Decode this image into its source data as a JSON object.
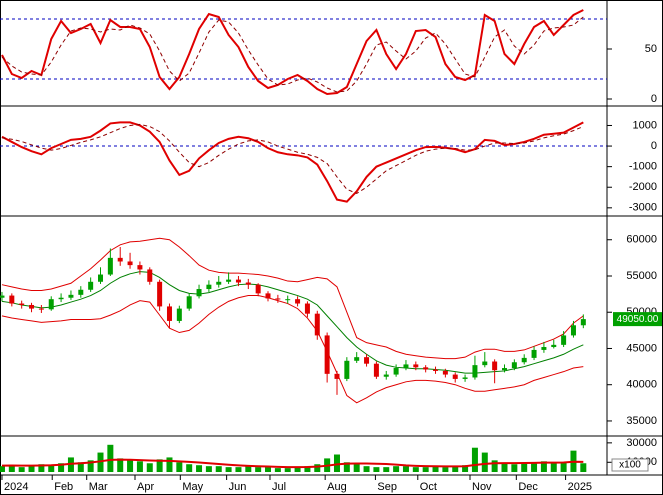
{
  "chart_data": [
    {
      "type": "line",
      "ylim": [
        -4,
        99
      ],
      "yticks": [
        0,
        50
      ],
      "ref_lines": [
        20,
        80
      ],
      "ref_color": "#0000c0",
      "series": [
        {
          "color": "#e00000",
          "dash": false,
          "values": [
            44,
            25,
            21,
            28,
            24,
            60,
            78,
            66,
            70,
            75,
            56,
            79,
            72,
            72,
            70,
            52,
            22,
            10,
            22,
            45,
            70,
            85,
            82,
            64,
            52,
            32,
            18,
            11,
            14,
            20,
            24,
            18,
            10,
            5,
            6,
            12,
            35,
            58,
            69,
            45,
            30,
            45,
            68,
            69,
            62,
            35,
            22,
            19,
            24,
            84,
            78,
            45,
            35,
            55,
            72,
            78,
            64,
            74,
            84,
            89
          ]
        },
        {
          "color": "#900000",
          "dash": true,
          "values": [
            42,
            33,
            27,
            25,
            24,
            37,
            54,
            68,
            71,
            70,
            67,
            70,
            69,
            74,
            71,
            65,
            48,
            28,
            18,
            26,
            46,
            67,
            79,
            77,
            66,
            49,
            34,
            20,
            14,
            15,
            19,
            21,
            17,
            11,
            7,
            8,
            18,
            35,
            54,
            57,
            48,
            40,
            48,
            61,
            66,
            55,
            40,
            25,
            22,
            42,
            62,
            69,
            53,
            45,
            54,
            68,
            71,
            72,
            74,
            82
          ]
        }
      ]
    },
    {
      "type": "line",
      "ylim": [
        -3300,
        1800
      ],
      "yticks": [
        1000,
        0,
        -1000,
        -2000,
        -3000
      ],
      "ref_lines": [
        0
      ],
      "ref_color": "#0000c0",
      "series": [
        {
          "color": "#e00000",
          "dash": false,
          "values": [
            450,
            200,
            -50,
            -250,
            -400,
            -100,
            100,
            300,
            350,
            450,
            750,
            1100,
            1150,
            1150,
            1000,
            700,
            200,
            -700,
            -1400,
            -1200,
            -600,
            -200,
            150,
            350,
            450,
            380,
            200,
            -100,
            -300,
            -400,
            -450,
            -550,
            -900,
            -1700,
            -2600,
            -2700,
            -2200,
            -1500,
            -1000,
            -800,
            -600,
            -400,
            -200,
            -50,
            -40,
            -80,
            -150,
            -300,
            -150,
            300,
            250,
            50,
            100,
            200,
            350,
            550,
            600,
            650,
            900,
            1150
          ]
        },
        {
          "color": "#900000",
          "dash": true,
          "values": [
            400,
            330,
            220,
            60,
            -100,
            -200,
            -120,
            30,
            180,
            300,
            450,
            650,
            850,
            1000,
            1050,
            950,
            700,
            250,
            -300,
            -800,
            -1000,
            -800,
            -450,
            -150,
            100,
            250,
            300,
            200,
            0,
            -150,
            -300,
            -400,
            -550,
            -850,
            -1500,
            -2100,
            -2300,
            -2000,
            -1600,
            -1200,
            -950,
            -700,
            -450,
            -250,
            -150,
            -100,
            -120,
            -200,
            -180,
            0,
            150,
            150,
            120,
            150,
            250,
            400,
            500,
            580,
            750,
            950
          ]
        }
      ]
    },
    {
      "type": "candlestick",
      "ylim": [
        33200,
        63000
      ],
      "yticks": [
        35000,
        40000,
        45000,
        50000,
        55000,
        60000
      ],
      "up_color": "#00a000",
      "down_color": "#e00000",
      "last_label": "49050.00",
      "last_label_color": "#00a000",
      "open": [
        52000,
        52300,
        51200,
        51000,
        50500,
        50400,
        51800,
        52000,
        52400,
        53100,
        54200,
        55200,
        57500,
        57000,
        56500,
        55900,
        54200,
        50800,
        48800,
        50500,
        52200,
        53200,
        53800,
        54200,
        54500,
        54100,
        53800,
        52600,
        51900,
        51800,
        51800,
        51200,
        49800,
        46800,
        41500,
        40800,
        43300,
        43800,
        42900,
        41100,
        41400,
        42300,
        42800,
        42400,
        42100,
        41900,
        41400,
        40800,
        41000,
        42700,
        43200,
        42000,
        42300,
        43100,
        43700,
        44800,
        45200,
        45500,
        46800,
        48200
      ],
      "high": [
        52800,
        52600,
        51600,
        51300,
        51000,
        52200,
        52600,
        53000,
        53600,
        54800,
        56200,
        58800,
        59000,
        58200,
        57000,
        56200,
        54500,
        51200,
        50900,
        52600,
        53800,
        54400,
        55000,
        55500,
        55000,
        54600,
        54000,
        52900,
        52400,
        52300,
        52200,
        51500,
        50200,
        47200,
        41900,
        43800,
        44500,
        44200,
        43200,
        41900,
        42800,
        43400,
        43200,
        42700,
        42500,
        42200,
        41700,
        41400,
        44000,
        44500,
        43500,
        42800,
        43500,
        44200,
        45300,
        45900,
        46200,
        47400,
        48800,
        49700
      ],
      "low": [
        51500,
        50800,
        50500,
        50000,
        49900,
        50200,
        51400,
        51700,
        52000,
        52800,
        53900,
        55000,
        56400,
        56000,
        55200,
        53800,
        50200,
        47800,
        48500,
        50200,
        51900,
        52800,
        53400,
        53900,
        53600,
        53200,
        52200,
        51500,
        51300,
        51200,
        50800,
        49300,
        46200,
        40300,
        38600,
        40500,
        43000,
        42500,
        40800,
        40700,
        41100,
        42000,
        42000,
        41700,
        41500,
        41000,
        40300,
        40400,
        40700,
        42400,
        40200,
        41700,
        42000,
        42800,
        43400,
        44400,
        45000,
        45200,
        46500,
        47800
      ],
      "close": [
        52300,
        51200,
        51000,
        50500,
        50400,
        51800,
        52000,
        52400,
        53100,
        54200,
        55200,
        57500,
        57000,
        56500,
        55900,
        54200,
        50800,
        48800,
        50500,
        52200,
        53200,
        53800,
        54200,
        54500,
        54100,
        53800,
        52600,
        51900,
        51800,
        51800,
        51200,
        49800,
        46800,
        41500,
        40800,
        43300,
        43800,
        42900,
        41100,
        41400,
        42300,
        42800,
        42400,
        42100,
        41900,
        41400,
        40800,
        41000,
        42700,
        43200,
        42000,
        42300,
        43100,
        43700,
        44800,
        45200,
        45500,
        46800,
        48200,
        49050
      ],
      "lines": [
        {
          "color": "#e00000",
          "values": [
            53800,
            53500,
            53200,
            53000,
            53000,
            53200,
            53600,
            54000,
            55000,
            56000,
            57200,
            58500,
            59300,
            59700,
            59800,
            60000,
            60200,
            60000,
            59000,
            57800,
            56500,
            55800,
            55500,
            55400,
            55400,
            55300,
            55200,
            55000,
            54700,
            54300,
            54200,
            54500,
            54800,
            54600,
            53500,
            50000,
            46500,
            45800,
            45500,
            45200,
            44600,
            44200,
            44000,
            43800,
            43700,
            43600,
            43600,
            43800,
            44500,
            44900,
            44900,
            44600,
            44600,
            44800,
            45300,
            45800,
            46300,
            47000,
            48500,
            49500
          ]
        },
        {
          "color": "#008000",
          "values": [
            51500,
            51300,
            51000,
            50800,
            50600,
            50700,
            51000,
            51400,
            51800,
            52300,
            53000,
            54000,
            54800,
            55300,
            55600,
            55500,
            54800,
            53800,
            53000,
            52600,
            52500,
            52700,
            53100,
            53500,
            53800,
            53900,
            53800,
            53500,
            53100,
            52700,
            52300,
            51800,
            51000,
            49500,
            48000,
            46500,
            45200,
            44200,
            43300,
            42700,
            42400,
            42300,
            42200,
            42200,
            42100,
            42000,
            41800,
            41600,
            41600,
            41700,
            41800,
            41900,
            42200,
            42500,
            42900,
            43300,
            43700,
            44200,
            44900,
            45500
          ]
        },
        {
          "color": "#e00000",
          "values": [
            49500,
            49200,
            49000,
            48800,
            48600,
            48700,
            48800,
            49000,
            49000,
            49000,
            49100,
            49600,
            50200,
            51000,
            51600,
            51400,
            49600,
            47800,
            47200,
            47500,
            48500,
            49700,
            50700,
            51500,
            52000,
            52300,
            52300,
            52000,
            51600,
            51200,
            50500,
            49200,
            47400,
            44600,
            41600,
            38500,
            37500,
            38200,
            39000,
            39600,
            40000,
            40400,
            40600,
            40600,
            40500,
            40300,
            40000,
            39500,
            39100,
            39100,
            39300,
            39500,
            39700,
            40000,
            40600,
            41000,
            41400,
            41800,
            42300,
            42500
          ]
        }
      ]
    },
    {
      "type": "bar",
      "ylim": [
        0,
        35000
      ],
      "yticks": [
        10000,
        30000
      ],
      "unit_label": "x100",
      "color": "#00a000",
      "ma_color": "#e00000",
      "values": [
        6000,
        7000,
        5000,
        6000,
        8000,
        7000,
        9000,
        15000,
        10000,
        12000,
        20000,
        28000,
        14000,
        12000,
        11000,
        9000,
        13000,
        15000,
        10000,
        8000,
        7000,
        6000,
        6000,
        5000,
        5000,
        6000,
        5000,
        5000,
        4000,
        4000,
        5000,
        6000,
        8000,
        14000,
        18000,
        10000,
        8000,
        6000,
        5000,
        5000,
        6000,
        6000,
        5000,
        5000,
        6000,
        5000,
        6000,
        7000,
        25000,
        20000,
        12000,
        9000,
        8000,
        9000,
        10000,
        11000,
        9000,
        10000,
        22000,
        9000
      ],
      "ma": [
        6500,
        6700,
        6600,
        6500,
        6700,
        6900,
        7500,
        8500,
        9000,
        9800,
        11000,
        12500,
        12800,
        12600,
        12200,
        11800,
        11600,
        11400,
        11000,
        10400,
        9800,
        9000,
        8200,
        7500,
        6800,
        6300,
        5900,
        5600,
        5300,
        5000,
        5000,
        5100,
        5500,
        6500,
        7800,
        8600,
        8800,
        8700,
        8500,
        8200,
        7600,
        6800,
        6300,
        6000,
        5900,
        5800,
        5800,
        5900,
        7200,
        8400,
        9000,
        9200,
        9200,
        9300,
        9400,
        9600,
        9700,
        9800,
        10500,
        10400
      ],
      "xlim": [
        -0.2,
        61.2
      ],
      "xticks": [
        {
          "value": 0,
          "label": "2024"
        },
        {
          "value": 5.1,
          "label": "Feb"
        },
        {
          "value": 8.6,
          "label": "Mar"
        },
        {
          "value": 13.5,
          "label": "Apr"
        },
        {
          "value": 18.1,
          "label": "May"
        },
        {
          "value": 22.8,
          "label": "Jun"
        },
        {
          "value": 27.2,
          "label": "Jul"
        },
        {
          "value": 32.8,
          "label": "Aug"
        },
        {
          "value": 37.9,
          "label": "Sep"
        },
        {
          "value": 42.2,
          "label": "Oct"
        },
        {
          "value": 47.5,
          "label": "Nov"
        },
        {
          "value": 52.2,
          "label": "Dec"
        },
        {
          "value": 57.2,
          "label": "2025"
        }
      ]
    }
  ]
}
